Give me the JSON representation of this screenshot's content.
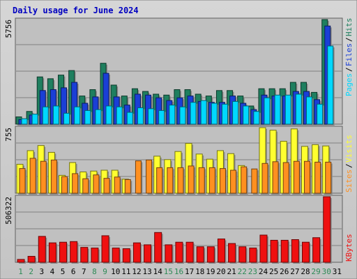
{
  "chart_data": [
    {
      "type": "bar",
      "title": "Daily usage for June 2024",
      "categories": [
        "1",
        "2",
        "3",
        "4",
        "5",
        "6",
        "7",
        "8",
        "9",
        "10",
        "11",
        "12",
        "13",
        "14",
        "15",
        "16",
        "17",
        "18",
        "19",
        "20",
        "21",
        "22",
        "23",
        "24",
        "25",
        "26",
        "27",
        "28",
        "29",
        "30",
        "31"
      ],
      "weekend_days": [
        "1",
        "2",
        "8",
        "9",
        "15",
        "16",
        "22",
        "23",
        "29",
        "30"
      ],
      "y_tick_label": "5756",
      "series": [
        {
          "name": "Hits",
          "color": "#1f7f5f",
          "values": [
            400,
            700,
            2600,
            2500,
            2700,
            2950,
            1550,
            1900,
            3350,
            2150,
            1550,
            1950,
            1800,
            1650,
            1600,
            1900,
            1900,
            1650,
            1550,
            1850,
            1850,
            1550,
            1000,
            1950,
            1950,
            1950,
            2300,
            2300,
            1750,
            5756,
            null
          ]
        },
        {
          "name": "Files",
          "color": "#1a3fd6",
          "values": [
            250,
            500,
            1850,
            1900,
            2000,
            2300,
            1150,
            1500,
            2800,
            1500,
            1050,
            1650,
            1600,
            1450,
            1300,
            1450,
            1550,
            1250,
            1200,
            1200,
            1550,
            1150,
            800,
            1600,
            1550,
            1550,
            1800,
            1800,
            1350,
            5400,
            null
          ]
        },
        {
          "name": "Pages",
          "color": "#00d8ff",
          "values": [
            300,
            550,
            950,
            1000,
            600,
            950,
            750,
            800,
            1000,
            950,
            650,
            900,
            850,
            750,
            1050,
            950,
            1200,
            1300,
            1150,
            1100,
            1250,
            1000,
            700,
            1450,
            1600,
            1600,
            1650,
            1500,
            1100,
            4300,
            null
          ]
        }
      ]
    },
    {
      "type": "bar",
      "y_tick_label": "755",
      "series": [
        {
          "name": "Visits",
          "color": "#ffff30",
          "values": [
            340,
            500,
            560,
            480,
            210,
            360,
            250,
            260,
            270,
            270,
            165,
            0,
            0,
            435,
            395,
            490,
            585,
            460,
            400,
            500,
            465,
            325,
            0,
            770,
            740,
            610,
            755,
            550,
            570,
            555,
            null
          ]
        },
        {
          "name": "Sites",
          "color": "#ff9020",
          "values": [
            290,
            410,
            375,
            390,
            195,
            230,
            170,
            215,
            175,
            190,
            160,
            380,
            390,
            300,
            300,
            300,
            320,
            300,
            300,
            290,
            270,
            310,
            285,
            350,
            370,
            360,
            375,
            375,
            365,
            365,
            null
          ]
        }
      ]
    },
    {
      "type": "bar",
      "y_tick_label": "506322",
      "series": [
        {
          "name": "KBytes",
          "color": "#ef1010",
          "values": [
            22000,
            46000,
            200000,
            150000,
            155000,
            160000,
            115000,
            110000,
            205000,
            110000,
            105000,
            150000,
            135000,
            230000,
            135000,
            155000,
            155000,
            120000,
            120000,
            180000,
            145000,
            120000,
            110000,
            210000,
            170000,
            170000,
            175000,
            155000,
            190000,
            506322,
            null
          ]
        }
      ]
    }
  ]
}
